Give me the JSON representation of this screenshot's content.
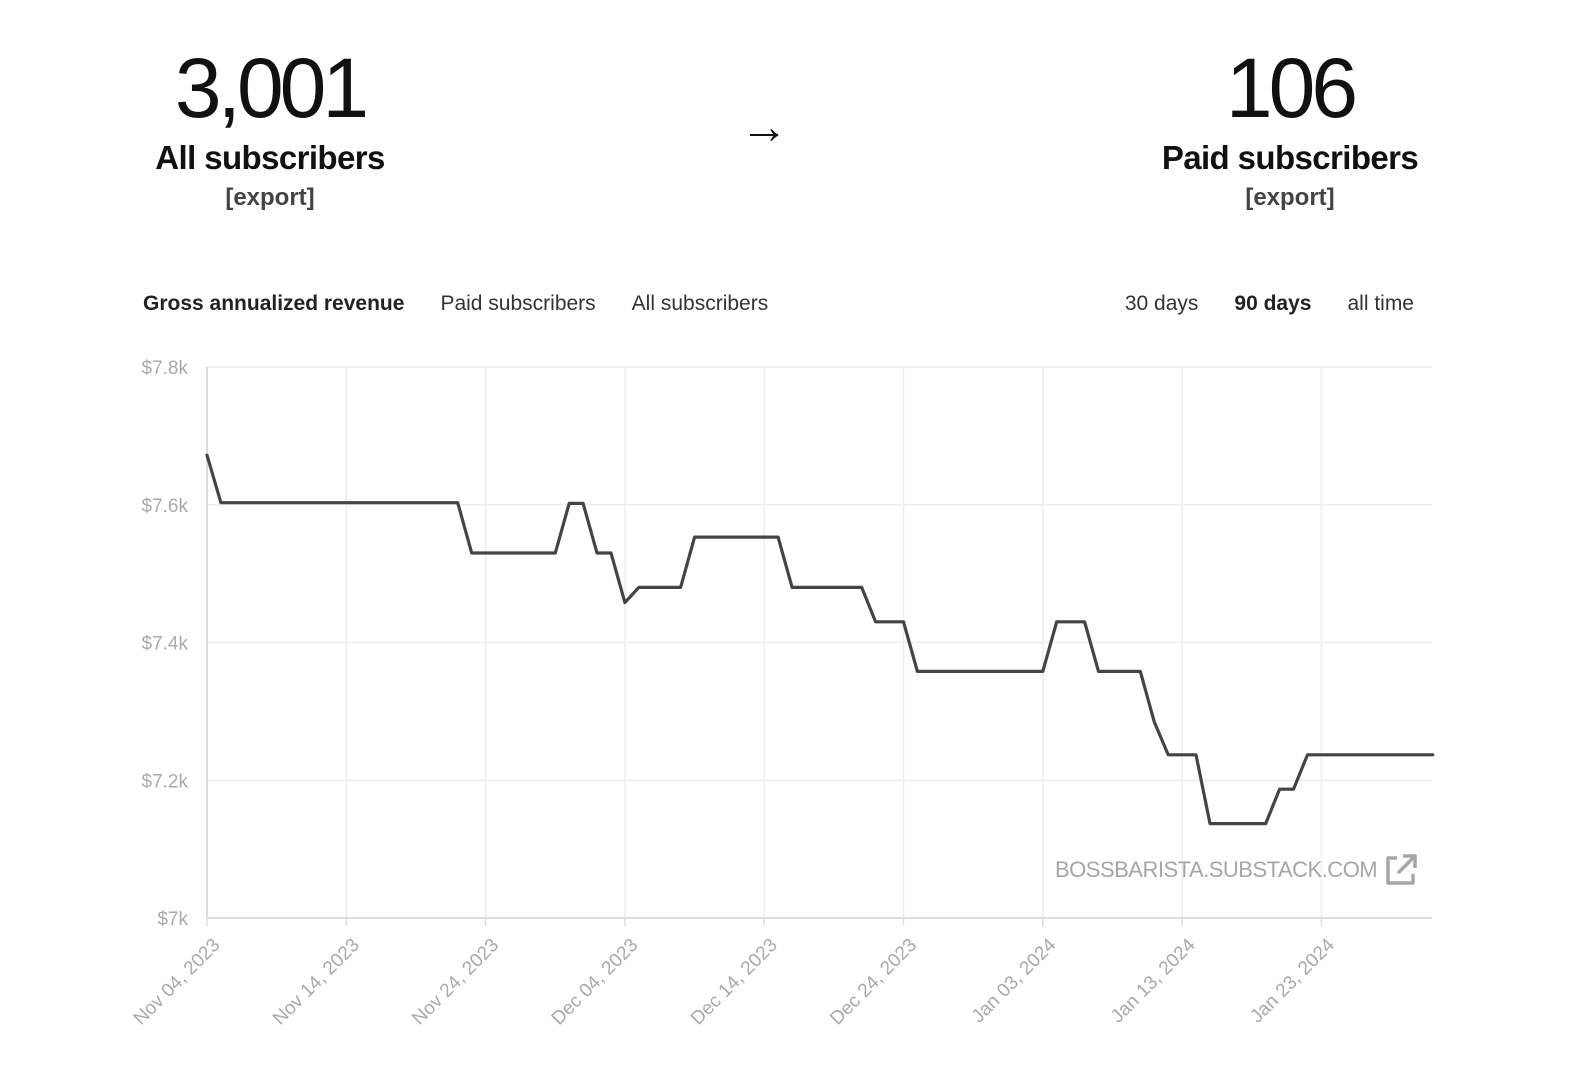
{
  "header": {
    "all": {
      "count": "3,001",
      "label": "All subscribers",
      "export": "[export]"
    },
    "arrow": "→",
    "paid": {
      "count": "106",
      "label": "Paid subscribers",
      "export": "[export]"
    }
  },
  "metric_tabs": [
    {
      "label": "Gross annualized revenue",
      "active": true
    },
    {
      "label": "Paid subscribers",
      "active": false
    },
    {
      "label": "All subscribers",
      "active": false
    }
  ],
  "range_tabs": [
    {
      "label": "30 days",
      "active": false
    },
    {
      "label": "90 days",
      "active": true
    },
    {
      "label": "all time",
      "active": false
    }
  ],
  "watermark": {
    "text": "BOSSBARISTA.SUBSTACK.COM",
    "icon": "external-link-icon"
  },
  "chart_data": {
    "type": "line",
    "title": "",
    "xlabel": "",
    "ylabel": "",
    "ylim": [
      7000,
      7800
    ],
    "y_ticks": [
      7000,
      7200,
      7400,
      7600,
      7800
    ],
    "y_tick_labels": [
      "$7k",
      "$7.2k",
      "$7.4k",
      "$7.6k",
      "$7.8k"
    ],
    "x_start": "2023-11-04",
    "x_end": "2024-01-31",
    "x_tick_labels": [
      "Nov 04, 2023",
      "Nov 14, 2023",
      "Nov 24, 2023",
      "Dec 04, 2023",
      "Dec 14, 2023",
      "Dec 24, 2023",
      "Jan 03, 2024",
      "Jan 13, 2024",
      "Jan 23, 2024"
    ],
    "grid": true,
    "colors": {
      "line": "#444444",
      "grid": "#eeeeee",
      "axis": "#dddddd",
      "tick_text": "#aaaaaa"
    },
    "series": [
      {
        "points": [
          [
            "2023-11-04",
            7672
          ],
          [
            "2023-11-05",
            7603
          ],
          [
            "2023-11-22",
            7603
          ],
          [
            "2023-11-23",
            7530
          ],
          [
            "2023-11-29",
            7530
          ],
          [
            "2023-11-30",
            7602
          ],
          [
            "2023-12-01",
            7602
          ],
          [
            "2023-12-02",
            7530
          ],
          [
            "2023-12-03",
            7530
          ],
          [
            "2023-12-04",
            7458
          ],
          [
            "2023-12-05",
            7480
          ],
          [
            "2023-12-08",
            7480
          ],
          [
            "2023-12-09",
            7553
          ],
          [
            "2023-12-15",
            7553
          ],
          [
            "2023-12-16",
            7480
          ],
          [
            "2023-12-21",
            7480
          ],
          [
            "2023-12-22",
            7430
          ],
          [
            "2023-12-24",
            7430
          ],
          [
            "2023-12-25",
            7358
          ],
          [
            "2024-01-03",
            7358
          ],
          [
            "2024-01-04",
            7430
          ],
          [
            "2024-01-06",
            7430
          ],
          [
            "2024-01-07",
            7358
          ],
          [
            "2024-01-10",
            7358
          ],
          [
            "2024-01-11",
            7285
          ],
          [
            "2024-01-12",
            7237
          ],
          [
            "2024-01-14",
            7237
          ],
          [
            "2024-01-15",
            7137
          ],
          [
            "2024-01-19",
            7137
          ],
          [
            "2024-01-20",
            7187
          ],
          [
            "2024-01-21",
            7187
          ],
          [
            "2024-01-22",
            7237
          ],
          [
            "2024-01-31",
            7237
          ]
        ]
      }
    ]
  }
}
